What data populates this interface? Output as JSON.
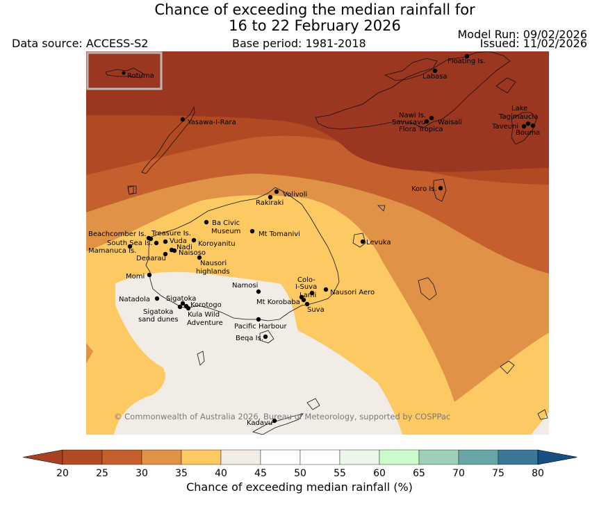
{
  "header": {
    "title_line1": "Chance of exceeding the median rainfall for",
    "title_line2": "16 to 22 February 2026",
    "data_source": "Data source: ACCESS-S2",
    "base_period": "Base period: 1981-2018",
    "model_run": "Model Run: 09/02/2026",
    "issued": "Issued: 11/02/2026"
  },
  "map": {
    "inset_label": "Rotuma",
    "copyright": "© Commonwealth of Australia 2026, Bureau of Meteorology, supported by COSPPac",
    "places": {
      "floating": "Floating Is.",
      "labasa": "Labasa",
      "yasawa": "Yasawa-I-Rara",
      "nawi": "Nawi Is.",
      "savusavu": "Savusavu",
      "waisali": "Waisali",
      "flora": "Flora Tropica",
      "lake": "Lake",
      "tagimaucia": "Tagimaucia",
      "taveuni": "Taveuni",
      "bouma": "Bouma",
      "koro": "Koro Is.",
      "volivoli": "Volivoli",
      "rakiraki": "Rakiraki",
      "bacivic1": "Ba Civic",
      "bacivic2": "Museum",
      "tomanivi": "Mt Tomanivi",
      "levuka": "Levuka",
      "beachcomber": "Beachcomber Is.",
      "treasure": "Treasure Is.",
      "southsea": "South Sea Is.",
      "vuda": "Vuda",
      "koroyanitu": "Koroyanitu",
      "mamanuca": "Mamanuca Is.",
      "nadi": "Nadi",
      "naisoso": "Naisoso",
      "denarau": "Denarau",
      "nausori_hl1": "Nausori",
      "nausori_hl2": "highlands",
      "momi": "Momi",
      "namosi": "Namosi",
      "colo1": "Colo-",
      "colo2": "I-Suva",
      "lami": "Lami",
      "nausori_aero": "Nausori Aero",
      "korobaba": "Mt Korobaba",
      "suva": "Suva",
      "natadola": "Natadola",
      "sigatoka": "Sigatoka",
      "korotogo": "Korotogo",
      "sig_dunes1": "Sigatoka",
      "sig_dunes2": "sand dunes",
      "kula1": "Kula Wild",
      "kula2": "Adventure",
      "pacific_harbour": "Pacific Harbour",
      "beqa": "Beqa Is.",
      "kadavu": "Kadavu"
    }
  },
  "colorbar": {
    "label": "Chance of exceeding median rainfall (%)",
    "ticks": [
      "20",
      "25",
      "30",
      "35",
      "40",
      "45",
      "50",
      "55",
      "60",
      "65",
      "70",
      "75",
      "80"
    ],
    "colors": [
      "#a84124",
      "#b14a23",
      "#c55f2e",
      "#e09246",
      "#fdc963",
      "#f1ece6",
      "#ffffff",
      "#ffffff",
      "#eaf7e9",
      "#cbfbcb",
      "#9fcfb8",
      "#6aa5a6",
      "#3c7896",
      "#164f80"
    ]
  }
}
